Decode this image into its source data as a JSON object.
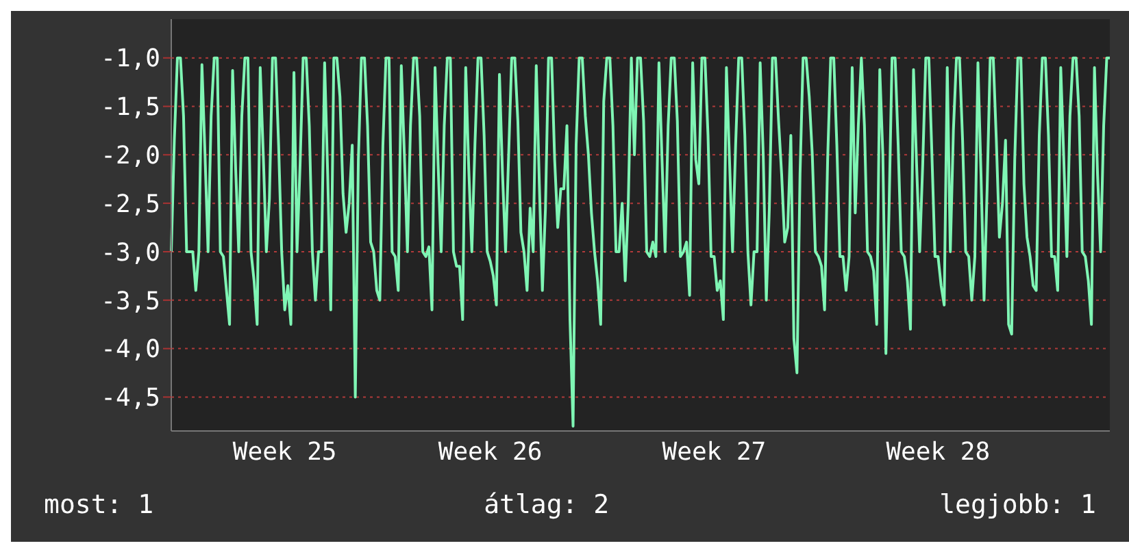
{
  "chart_data": {
    "type": "line",
    "color": "#7ff5b4",
    "grid": "y",
    "marker": "none",
    "line_style": "solid",
    "categories": [
      null,
      null,
      null,
      null,
      null,
      null,
      null,
      null,
      null,
      null,
      null,
      null,
      null,
      null,
      null,
      null,
      null,
      null,
      null,
      null,
      null,
      null,
      null,
      null,
      null,
      null,
      null,
      null,
      null,
      null,
      null,
      null,
      null,
      null,
      null,
      null,
      null,
      "Week 25",
      null,
      null,
      null,
      null,
      null,
      null,
      null,
      null,
      null,
      null,
      null,
      null,
      null,
      null,
      null,
      null,
      null,
      null,
      null,
      null,
      null,
      null,
      null,
      null,
      null,
      null,
      null,
      null,
      null,
      null,
      null,
      null,
      null,
      null,
      null,
      null,
      null,
      null,
      null,
      null,
      null,
      null,
      null,
      null,
      null,
      null,
      null,
      null,
      null,
      null,
      null,
      null,
      null,
      null,
      null,
      null,
      null,
      null,
      null,
      null,
      null,
      null,
      null,
      null,
      null,
      null,
      "Week 26",
      null,
      null,
      null,
      null,
      null,
      null,
      null,
      null,
      null,
      null,
      null,
      null,
      null,
      null,
      null,
      null,
      null,
      null,
      null,
      null,
      null,
      null,
      null,
      null,
      null,
      null,
      null,
      null,
      null,
      null,
      null,
      null,
      null,
      null,
      null,
      null,
      null,
      null,
      null,
      null,
      null,
      null,
      null,
      null,
      null,
      null,
      null,
      null,
      null,
      null,
      null,
      null,
      null,
      null,
      null,
      null,
      null,
      null,
      null,
      null,
      null,
      null,
      null,
      null,
      null,
      null,
      null,
      null,
      null,
      null,
      null,
      null,
      "Week 27",
      null,
      null,
      null,
      null,
      null,
      null,
      null,
      null,
      null,
      null,
      null,
      null,
      null,
      null,
      null,
      null,
      null,
      null,
      null,
      null,
      null,
      null,
      null,
      null,
      null,
      null,
      null,
      null,
      null,
      null,
      null,
      null,
      null,
      null,
      null,
      null,
      null,
      null,
      null,
      null,
      null,
      null,
      null,
      null,
      null,
      null,
      null,
      null,
      null,
      null,
      null,
      null,
      null,
      null,
      null,
      null,
      null,
      null,
      null,
      null,
      null,
      null,
      null,
      null,
      null,
      null,
      null,
      null,
      null,
      null,
      null,
      null,
      "Week 28",
      null,
      null,
      null,
      null,
      null,
      null,
      null,
      null,
      null,
      null,
      null,
      null,
      null,
      null,
      null,
      null,
      null,
      null,
      null,
      null,
      null,
      null,
      null,
      null,
      null,
      null,
      null,
      null,
      null,
      null,
      null,
      null,
      null,
      null,
      null,
      null,
      null,
      null,
      null,
      null,
      null,
      null,
      null,
      null,
      null,
      null,
      null,
      null,
      null,
      null,
      null,
      null,
      null,
      null,
      null,
      null
    ],
    "ylim": [
      -4.85,
      -0.6
    ],
    "yticks": [
      {
        "value": -1,
        "label": "-1,0"
      },
      {
        "value": -1.5,
        "label": "-1,5"
      },
      {
        "value": -2,
        "label": "-2,0"
      },
      {
        "value": -2.5,
        "label": "-2,5"
      },
      {
        "value": -3,
        "label": "-3,0"
      },
      {
        "value": -3.5,
        "label": "-3,5"
      },
      {
        "value": -4,
        "label": "-4,0"
      },
      {
        "value": -4.5,
        "label": "-4,5"
      }
    ],
    "annotations": [
      "most: 1",
      "átlag: 2",
      "legjobb: 1"
    ],
    "values": [
      -3.0,
      -1.85,
      -1.0,
      -1.0,
      -1.6,
      -3.0,
      -3.0,
      -3.0,
      -3.4,
      -3.0,
      -1.07,
      -2.0,
      -3.0,
      -1.6,
      -1.0,
      -1.0,
      -3.0,
      -3.05,
      -3.4,
      -3.75,
      -1.13,
      -2.15,
      -3.0,
      -1.6,
      -1.0,
      -1.0,
      -3.0,
      -3.3,
      -3.75,
      -1.1,
      -2.0,
      -3.0,
      -2.45,
      -1.0,
      -1.0,
      -1.9,
      -3.0,
      -3.6,
      -3.35,
      -3.75,
      -1.15,
      -3.0,
      -2.1,
      -1.0,
      -1.0,
      -1.7,
      -3.0,
      -3.5,
      -3.0,
      -3.0,
      -1.05,
      -2.2,
      -3.6,
      -1.0,
      -1.0,
      -1.4,
      -2.4,
      -2.8,
      -2.5,
      -1.9,
      -4.5,
      -2.05,
      -1.0,
      -1.0,
      -1.7,
      -2.9,
      -3.0,
      -3.4,
      -3.5,
      -1.9,
      -1.0,
      -1.0,
      -3.0,
      -3.05,
      -3.4,
      -1.08,
      -2.0,
      -3.0,
      -1.7,
      -1.0,
      -1.0,
      -1.6,
      -3.0,
      -3.05,
      -2.95,
      -3.6,
      -1.1,
      -2.1,
      -3.0,
      -1.7,
      -1.0,
      -1.0,
      -3.0,
      -3.15,
      -3.15,
      -3.7,
      -1.1,
      -2.15,
      -3.0,
      -1.9,
      -1.0,
      -1.0,
      -1.8,
      -3.0,
      -3.1,
      -3.25,
      -3.55,
      -1.17,
      -2.2,
      -3.0,
      -2.0,
      -1.0,
      -1.0,
      -1.65,
      -2.8,
      -3.0,
      -3.4,
      -2.55,
      -3.0,
      -1.08,
      -2.3,
      -3.4,
      -2.55,
      -1.0,
      -1.0,
      -2.05,
      -2.75,
      -2.35,
      -2.35,
      -1.7,
      -3.7,
      -4.8,
      -1.9,
      -1.0,
      -1.0,
      -1.6,
      -2.0,
      -2.6,
      -3.0,
      -3.3,
      -3.75,
      -1.45,
      -1.0,
      -1.0,
      -1.7,
      -3.0,
      -3.0,
      -2.5,
      -3.3,
      -2.5,
      -1.0,
      -2.0,
      -1.0,
      -1.0,
      -1.65,
      -3.0,
      -3.05,
      -2.9,
      -3.05,
      -1.05,
      -2.05,
      -3.0,
      -1.7,
      -1.0,
      -1.0,
      -1.65,
      -3.05,
      -3.0,
      -2.9,
      -3.45,
      -1.05,
      -2.05,
      -2.3,
      -1.0,
      -1.0,
      -1.8,
      -3.05,
      -3.05,
      -3.4,
      -3.3,
      -3.7,
      -1.1,
      -2.05,
      -3.0,
      -1.9,
      -1.0,
      -1.0,
      -1.8,
      -3.0,
      -3.55,
      -3.0,
      -3.0,
      -1.05,
      -2.0,
      -3.5,
      -2.55,
      -1.0,
      -1.0,
      -1.65,
      -2.2,
      -2.9,
      -2.75,
      -1.8,
      -3.9,
      -4.25,
      -2.2,
      -1.0,
      -1.0,
      -1.4,
      -2.0,
      -3.0,
      -3.05,
      -3.15,
      -3.6,
      -2.05,
      -1.0,
      -1.0,
      -1.9,
      -3.05,
      -3.05,
      -3.4,
      -3.05,
      -1.1,
      -2.6,
      -1.7,
      -1.0,
      -1.7,
      -3.0,
      -3.05,
      -3.2,
      -3.75,
      -1.12,
      -2.0,
      -4.05,
      -2.6,
      -1.0,
      -1.0,
      -1.9,
      -3.0,
      -3.05,
      -3.3,
      -3.8,
      -1.12,
      -2.1,
      -3.0,
      -2.1,
      -1.0,
      -1.0,
      -2.0,
      -3.05,
      -3.05,
      -3.35,
      -3.55,
      -1.1,
      -3.0,
      -1.75,
      -1.0,
      -1.0,
      -1.85,
      -3.0,
      -3.05,
      -3.5,
      -3.05,
      -1.05,
      -2.2,
      -3.5,
      -2.35,
      -1.0,
      -1.0,
      -1.85,
      -2.85,
      -2.5,
      -1.85,
      -3.75,
      -3.85,
      -2.05,
      -1.0,
      -1.0,
      -2.3,
      -2.85,
      -3.05,
      -3.35,
      -3.4,
      -1.8,
      -1.0,
      -1.0,
      -1.8,
      -3.05,
      -3.05,
      -3.4,
      -1.1,
      -2.05,
      -3.05,
      -1.6,
      -1.0,
      -1.0,
      -1.6,
      -3.0,
      -3.05,
      -3.3,
      -3.75,
      -1.1,
      -2.2,
      -3.0,
      -1.7,
      -1.0,
      -1.0
    ]
  }
}
